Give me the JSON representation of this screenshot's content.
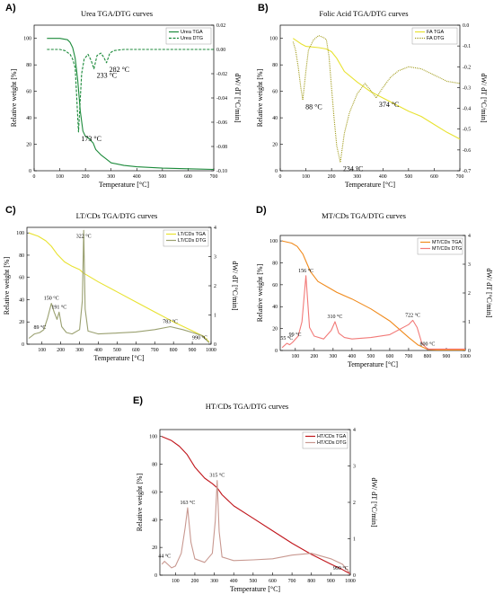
{
  "chart_data": [
    {
      "type": "line",
      "panel": "A)",
      "title": "Urea TGA/DTG curves",
      "xlabel": "Temperature [°C]",
      "ylabel": "Relative weight [%]",
      "y2label": "dW/ dT [°C/min]",
      "xlim": [
        0,
        700
      ],
      "ylim": [
        0,
        110
      ],
      "y2lim": [
        -0.1,
        0.02
      ],
      "xticks": [
        "0",
        "100",
        "200",
        "300",
        "400",
        "500",
        "600",
        "700"
      ],
      "yticks": [
        "0",
        "20",
        "40",
        "60",
        "80",
        "100"
      ],
      "y2ticks": [
        "-0.10",
        "-0.08",
        "-0.06",
        "-0.04",
        "-0.02",
        "0.00",
        "0.02"
      ],
      "grid": false,
      "legend": "top-right",
      "series": [
        {
          "name": "Urea TGA",
          "axis": "left",
          "color": "#1b8a3a",
          "style": "solid",
          "x": [
            50,
            100,
            130,
            140,
            150,
            160,
            170,
            180,
            190,
            200,
            210,
            220,
            230,
            240,
            260,
            280,
            300,
            350,
            400,
            500,
            600,
            700
          ],
          "y": [
            100,
            100,
            99,
            97,
            93,
            85,
            68,
            45,
            30,
            26,
            25,
            23,
            21,
            16,
            12,
            9,
            6,
            4,
            3,
            2,
            1.5,
            1
          ]
        },
        {
          "name": "Urea DTG",
          "axis": "right",
          "color": "#1b8a3a",
          "style": "dashed",
          "x": [
            50,
            100,
            120,
            140,
            150,
            160,
            173,
            185,
            195,
            210,
            222,
            233,
            245,
            260,
            270,
            282,
            295,
            310,
            350,
            400,
            500,
            600,
            700
          ],
          "y": [
            0,
            0,
            -0.001,
            -0.004,
            -0.008,
            -0.015,
            -0.068,
            -0.02,
            -0.008,
            -0.004,
            -0.009,
            -0.016,
            -0.005,
            -0.003,
            -0.006,
            -0.011,
            -0.003,
            -0.001,
            0,
            0,
            0,
            0,
            0
          ]
        }
      ],
      "annotations": [
        {
          "text": "173 °C",
          "x": 173,
          "y": -0.068
        },
        {
          "text": "233 °C",
          "x": 233,
          "y": -0.016
        },
        {
          "text": "282 °C",
          "x": 282,
          "y": -0.011
        }
      ]
    },
    {
      "type": "line",
      "panel": "B)",
      "title": "Folic Acid TGA/DTG curves",
      "xlabel": "Temperature [°C]",
      "ylabel": "Relative weight [%]",
      "y2label": "dW/ dT [°C/min]",
      "xlim": [
        0,
        700
      ],
      "ylim": [
        0,
        110
      ],
      "y2lim": [
        -0.7,
        0.0
      ],
      "xticks": [
        "0",
        "100",
        "200",
        "300",
        "400",
        "500",
        "600",
        "700"
      ],
      "yticks": [
        "0",
        "20",
        "40",
        "60",
        "80",
        "100"
      ],
      "y2ticks": [
        "-0.7",
        "-0.6",
        "-0.5",
        "-0.4",
        "-0.3",
        "-0.2",
        "-0.1",
        "0.0"
      ],
      "grid": false,
      "legend": "top-right",
      "series": [
        {
          "name": "FA TGA",
          "axis": "left",
          "color": "#e8e230",
          "style": "solid",
          "x": [
            50,
            80,
            100,
            150,
            180,
            200,
            220,
            250,
            300,
            350,
            400,
            450,
            500,
            550,
            600,
            650,
            700
          ],
          "y": [
            100,
            96,
            94,
            93,
            92,
            90,
            85,
            75,
            67,
            60,
            55,
            50,
            45,
            41,
            35,
            29,
            24
          ]
        },
        {
          "name": "FA DTG",
          "axis": "right",
          "color": "#a09a18",
          "style": "dotted",
          "x": [
            50,
            60,
            70,
            80,
            88,
            100,
            110,
            130,
            150,
            170,
            180,
            190,
            200,
            210,
            220,
            234,
            250,
            270,
            300,
            330,
            350,
            374,
            400,
            430,
            460,
            500,
            550,
            600,
            650,
            700
          ],
          "y": [
            -0.08,
            -0.12,
            -0.2,
            -0.3,
            -0.36,
            -0.22,
            -0.12,
            -0.07,
            -0.05,
            -0.06,
            -0.07,
            -0.15,
            -0.3,
            -0.45,
            -0.58,
            -0.66,
            -0.52,
            -0.42,
            -0.33,
            -0.28,
            -0.31,
            -0.35,
            -0.3,
            -0.25,
            -0.22,
            -0.2,
            -0.21,
            -0.24,
            -0.27,
            -0.28
          ]
        }
      ],
      "annotations": [
        {
          "text": "88 °C",
          "x": 88,
          "y": -0.36
        },
        {
          "text": "234 °C",
          "x": 234,
          "y": -0.66
        },
        {
          "text": "374 °C",
          "x": 374,
          "y": -0.35
        }
      ]
    },
    {
      "type": "line",
      "panel": "C)",
      "title": "LT/CDs TGA/DTG curves",
      "xlabel": "Temperature [°C]",
      "ylabel": "Relative weight [%]",
      "y2label": "dW/ dT [°C/min]",
      "xlim": [
        20,
        1000
      ],
      "ylim": [
        0,
        105
      ],
      "y2lim": [
        0,
        4
      ],
      "xticks": [
        "100",
        "200",
        "300",
        "400",
        "500",
        "600",
        "700",
        "800",
        "900",
        "1000"
      ],
      "yticks": [
        "0",
        "20",
        "40",
        "60",
        "80",
        "100"
      ],
      "y2ticks": [
        "0",
        "1",
        "2",
        "3",
        "4"
      ],
      "grid": false,
      "legend": "top-right",
      "series": [
        {
          "name": "LT/CDs TGA",
          "axis": "left",
          "color": "#e8e230",
          "style": "solid",
          "x": [
            30,
            80,
            120,
            150,
            180,
            220,
            260,
            300,
            320,
            340,
            400,
            500,
            600,
            700,
            800,
            900,
            960,
            990
          ],
          "y": [
            100,
            97,
            93,
            88,
            81,
            74,
            70,
            67,
            64,
            62,
            56,
            47,
            38,
            29,
            20,
            12,
            7,
            2
          ]
        },
        {
          "name": "LT/CDs DTG",
          "axis": "right",
          "color": "#9aa070",
          "style": "solid",
          "x": [
            30,
            60,
            89,
            110,
            130,
            150,
            165,
            180,
            191,
            205,
            230,
            260,
            300,
            315,
            322,
            330,
            345,
            400,
            500,
            600,
            700,
            783,
            850,
            900,
            950,
            990
          ],
          "y": [
            0.2,
            0.35,
            0.4,
            0.5,
            0.9,
            1.4,
            1.1,
            0.85,
            1.1,
            0.6,
            0.4,
            0.35,
            0.5,
            1.5,
            3.9,
            1.2,
            0.45,
            0.35,
            0.38,
            0.42,
            0.5,
            0.6,
            0.5,
            0.4,
            0.3,
            0.05
          ]
        }
      ],
      "annotations": [
        {
          "text": "89 °C",
          "x": 89,
          "y": 0.4
        },
        {
          "text": "150 °C",
          "x": 150,
          "y": 1.4
        },
        {
          "text": "191 °C",
          "x": 191,
          "y": 1.1
        },
        {
          "text": "322 °C",
          "x": 322,
          "y": 3.9
        },
        {
          "text": "783 °C",
          "x": 783,
          "y": 0.6
        },
        {
          "text": "990 °C",
          "x": 990,
          "y": 0.05
        }
      ]
    },
    {
      "type": "line",
      "panel": "D)",
      "title": "MT/CDs TGA/DTG curves",
      "xlabel": "Temperature [°C]",
      "ylabel": "Relative weight [%]",
      "y2label": "dW/ dT [°C/min]",
      "xlim": [
        20,
        1000
      ],
      "ylim": [
        0,
        105
      ],
      "y2lim": [
        0,
        4
      ],
      "xticks": [
        "100",
        "200",
        "300",
        "400",
        "500",
        "600",
        "700",
        "800",
        "900",
        "1000"
      ],
      "yticks": [
        "0",
        "20",
        "40",
        "60",
        "80",
        "100"
      ],
      "y2ticks": [
        "0",
        "1",
        "2",
        "3",
        "4"
      ],
      "grid": false,
      "legend": "top-right",
      "series": [
        {
          "name": "MT/CDs TGA",
          "axis": "left",
          "color": "#f08a1c",
          "style": "solid",
          "x": [
            30,
            80,
            110,
            140,
            160,
            180,
            220,
            280,
            320,
            400,
            500,
            600,
            700,
            750,
            800,
            850,
            1000
          ],
          "y": [
            100,
            98,
            95,
            88,
            80,
            72,
            63,
            57,
            53,
            47,
            38,
            27,
            12,
            5,
            1,
            0.5,
            0.5
          ]
        },
        {
          "name": "MT/CDs DTG",
          "axis": "right",
          "color": "#f27a78",
          "style": "solid",
          "x": [
            30,
            55,
            70,
            85,
            99,
            115,
            135,
            156,
            175,
            200,
            250,
            290,
            310,
            330,
            360,
            400,
            500,
            600,
            700,
            722,
            745,
            770,
            800,
            850,
            1000
          ],
          "y": [
            0.1,
            0.25,
            0.2,
            0.28,
            0.38,
            0.5,
            1.0,
            2.6,
            0.8,
            0.5,
            0.4,
            0.7,
            1.0,
            0.6,
            0.45,
            0.4,
            0.45,
            0.55,
            0.9,
            1.05,
            0.8,
            0.25,
            0.05,
            0.05,
            0.05
          ]
        }
      ],
      "annotations": [
        {
          "text": "55 °C",
          "x": 55,
          "y": 0.25
        },
        {
          "text": "99 °C",
          "x": 99,
          "y": 0.38
        },
        {
          "text": "156 °C",
          "x": 156,
          "y": 2.6
        },
        {
          "text": "310 °C",
          "x": 310,
          "y": 1.0
        },
        {
          "text": "722 °C",
          "x": 722,
          "y": 1.05
        },
        {
          "text": "800 °C",
          "x": 800,
          "y": 0.05
        }
      ]
    },
    {
      "type": "line",
      "panel": "E)",
      "title": "HT/CDs TGA/DTG curves",
      "xlabel": "Temperature [°C]",
      "ylabel": "Relative weight [%]",
      "y2label": "dW/ dT [°C/min]",
      "xlim": [
        20,
        1000
      ],
      "ylim": [
        0,
        105
      ],
      "y2lim": [
        0,
        4
      ],
      "xticks": [
        "100",
        "200",
        "300",
        "400",
        "500",
        "600",
        "700",
        "800",
        "900",
        "1000"
      ],
      "yticks": [
        "0",
        "20",
        "40",
        "60",
        "80",
        "100"
      ],
      "y2ticks": [
        "0",
        "1",
        "2",
        "3",
        "4"
      ],
      "grid": false,
      "legend": "top-right",
      "series": [
        {
          "name": "HT/CDs TGA",
          "axis": "left",
          "color": "#c0151b",
          "style": "solid",
          "x": [
            30,
            80,
            120,
            160,
            200,
            250,
            290,
            315,
            340,
            400,
            500,
            600,
            700,
            800,
            900,
            960,
            999
          ],
          "y": [
            100,
            97,
            93,
            87,
            78,
            70,
            66,
            63,
            58,
            50,
            41,
            32,
            23,
            15,
            8,
            4,
            1
          ]
        },
        {
          "name": "HT/CDs DTG",
          "axis": "right",
          "color": "#c89890",
          "style": "solid",
          "x": [
            30,
            44,
            60,
            80,
            100,
            130,
            150,
            163,
            180,
            200,
            250,
            290,
            305,
            315,
            325,
            340,
            400,
            500,
            600,
            700,
            800,
            900,
            960,
            999
          ],
          "y": [
            0.3,
            0.38,
            0.3,
            0.2,
            0.25,
            0.6,
            1.3,
            1.85,
            0.9,
            0.45,
            0.35,
            0.6,
            1.5,
            2.6,
            1.2,
            0.5,
            0.4,
            0.42,
            0.45,
            0.55,
            0.6,
            0.45,
            0.3,
            0.05
          ]
        }
      ],
      "annotations": [
        {
          "text": "44 °C",
          "x": 44,
          "y": 0.38
        },
        {
          "text": "163 °C",
          "x": 163,
          "y": 1.85
        },
        {
          "text": "315 °C",
          "x": 315,
          "y": 2.6
        },
        {
          "text": "999 °C",
          "x": 999,
          "y": 0.05
        }
      ]
    }
  ]
}
